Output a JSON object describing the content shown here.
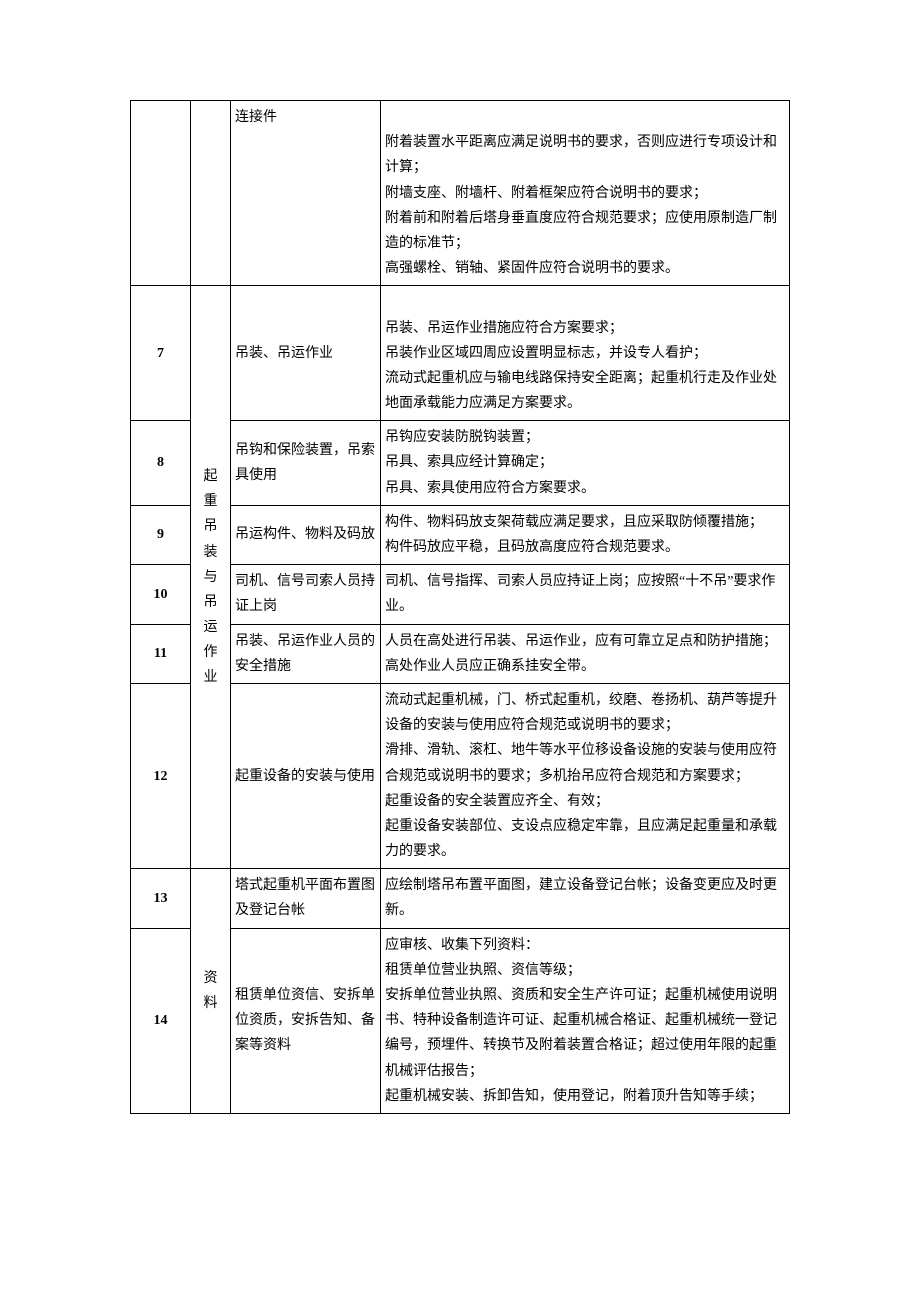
{
  "table": {
    "rows": [
      {
        "num": "",
        "item": "连接件",
        "desc": "\n附着装置水平距离应满足说明书的要求，否则应进行专项设计和计算；\n附墙支座、附墙杆、附着框架应符合说明书的要求；\n附着前和附着后塔身垂直度应符合规范要求；应使用原制造厂制造的标准节；\n高强螺栓、销轴、紧固件应符合说明书的要求。"
      },
      {
        "num": "7",
        "cat": "起重吊装与吊运作业",
        "item": "吊装、吊运作业",
        "desc": "\n吊装、吊运作业措施应符合方案要求；\n吊装作业区域四周应设置明显标志，并设专人看护；\n流动式起重机应与输电线路保持安全距离；起重机行走及作业处地面承载能力应满足方案要求。"
      },
      {
        "num": "8",
        "item": "吊钩和保险装置，吊索具使用",
        "desc": "吊钩应安装防脱钩装置；\n吊具、索具应经计算确定；\n吊具、索具使用应符合方案要求。"
      },
      {
        "num": "9",
        "item": "吊运构件、物料及码放",
        "desc": "构件、物料码放支架荷载应满足要求，且应采取防倾覆措施；\n构件码放应平稳，且码放高度应符合规范要求。"
      },
      {
        "num": "10",
        "item": "司机、信号司索人员持证上岗",
        "desc": "司机、信号指挥、司索人员应持证上岗；应按照“十不吊”要求作业。"
      },
      {
        "num": "11",
        "item": "吊装、吊运作业人员的安全措施",
        "desc": "人员在高处进行吊装、吊运作业，应有可靠立足点和防护措施；\n高处作业人员应正确系挂安全带。"
      },
      {
        "num": "12",
        "item": "起重设备的安装与使用",
        "desc": "流动式起重机械，门、桥式起重机，绞磨、卷扬机、葫芦等提升设备的安装与使用应符合规范或说明书的要求；\n滑排、滑轨、滚杠、地牛等水平位移设备设施的安装与使用应符合规范或说明书的要求；多机抬吊应符合规范和方案要求；\n起重设备的安全装置应齐全、有效；\n起重设备安装部位、支设点应稳定牢靠，且应满足起重量和承载力的要求。"
      },
      {
        "num": "13",
        "cat": "资料",
        "item": "塔式起重机平面布置图及登记台帐",
        "desc": "应绘制塔吊布置平面图，建立设备登记台帐；设备变更应及时更新。"
      },
      {
        "num": "14",
        "item": "租赁单位资信、安拆单位资质，安拆告知、备案等资料",
        "desc": "应审核、收集下列资料：\n租赁单位营业执照、资信等级；\n安拆单位营业执照、资质和安全生产许可证；起重机械使用说明书、特种设备制造许可证、起重机械合格证、起重机械统一登记编号，预埋件、转换节及附着装置合格证；超过使用年限的起重机械评估报告；\n起重机械安装、拆卸告知，使用登记，附着顶升告知等手续；"
      }
    ]
  }
}
